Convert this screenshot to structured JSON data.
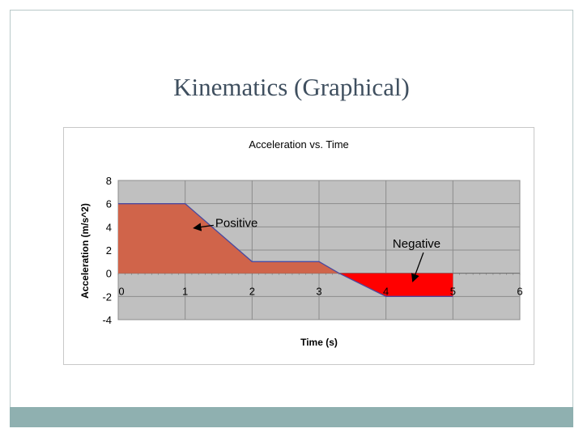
{
  "slide": {
    "title": "Kinematics (Graphical)",
    "accent_color": "#8fb0b0"
  },
  "chart_data": {
    "type": "area",
    "title": "Acceleration vs. Time",
    "xlabel": "Time (s)",
    "ylabel": "Acceleration (m/s^2)",
    "xlim": [
      0,
      6
    ],
    "ylim": [
      -4,
      8
    ],
    "x_ticks": [
      "0",
      "1",
      "2",
      "3",
      "4",
      "5",
      "6"
    ],
    "y_ticks": [
      "8",
      "6",
      "4",
      "2",
      "0",
      "-2",
      "-4"
    ],
    "grid": true,
    "series": [
      {
        "x": [
          0,
          1,
          2,
          3,
          3.3,
          4,
          5
        ],
        "y": [
          6,
          6,
          1,
          1,
          0,
          -2,
          -2
        ],
        "line_color": "#4a4aa0"
      }
    ],
    "positive_fill_color": "#d0644a",
    "negative_fill_color": "#ff0000",
    "annotations": [
      {
        "text": "Positive",
        "tx": 1.45,
        "ty": 4.0,
        "ax": 1.13,
        "ay": 3.9
      },
      {
        "text": "Negative",
        "tx": 4.1,
        "ty": 2.2,
        "ax": 4.4,
        "ay": -0.7
      }
    ]
  }
}
